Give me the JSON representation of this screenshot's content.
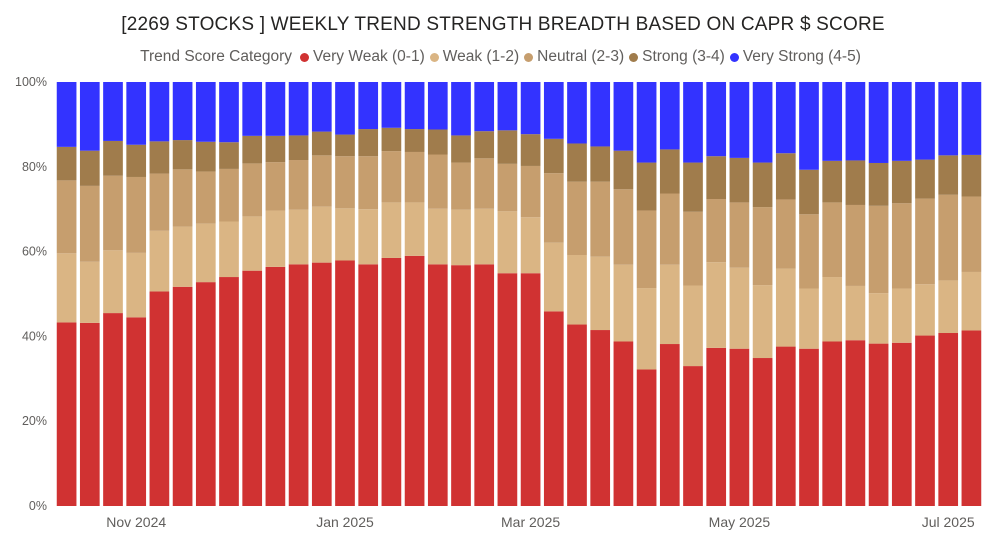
{
  "chart_data": {
    "type": "bar",
    "stacked": true,
    "normalized": true,
    "title": "[2269 STOCKS ] WEEKLY TREND STRENGTH BREADTH BASED ON CAPR $ SCORE",
    "legend_title": "Trend Score Category",
    "legend_position": "top-center",
    "ylim": [
      0,
      100
    ],
    "y_ticks": [
      "0%",
      "20%",
      "40%",
      "60%",
      "80%",
      "100%"
    ],
    "x_tick_labels": [
      {
        "label": "Nov 2024",
        "bar_index": 3
      },
      {
        "label": "Jan 2025",
        "bar_index": 12
      },
      {
        "label": "Mar 2025",
        "bar_index": 20
      },
      {
        "label": "May 2025",
        "bar_index": 29
      },
      {
        "label": "Jul 2025",
        "bar_index": 38
      }
    ],
    "series": [
      {
        "name": "Very Weak (0-1)",
        "color": "#D03232",
        "values": [
          43.3,
          43.2,
          45.5,
          44.5,
          50.6,
          51.7,
          52.8,
          54.0,
          55.5,
          56.4,
          57.0,
          57.4,
          57.9,
          57.0,
          58.5,
          59.0,
          57.0,
          56.8,
          57.0,
          54.9,
          54.9,
          45.9,
          42.8,
          41.5,
          38.8,
          32.2,
          38.2,
          33.0,
          37.3,
          37.1,
          34.9,
          37.6,
          37.1,
          38.8,
          39.1,
          38.3,
          38.5,
          40.2,
          40.8,
          41.4
        ]
      },
      {
        "name": "Weak (1-2)",
        "color": "#DAB584",
        "values": [
          16.3,
          14.4,
          14.8,
          15.2,
          14.3,
          14.2,
          13.8,
          13.1,
          12.8,
          13.3,
          12.9,
          13.2,
          12.3,
          13.0,
          13.1,
          12.6,
          13.1,
          13.1,
          13.1,
          14.6,
          13.2,
          16.2,
          16.4,
          17.3,
          18.1,
          19.2,
          18.7,
          19.0,
          20.2,
          19.1,
          17.2,
          18.4,
          14.2,
          15.2,
          12.8,
          11.9,
          12.8,
          12.1,
          12.4,
          13.8
        ]
      },
      {
        "name": "Neutral (2-3)",
        "color": "#C69E6E",
        "values": [
          17.2,
          17.9,
          17.6,
          17.9,
          13.5,
          13.5,
          12.3,
          12.4,
          12.5,
          11.4,
          11.7,
          12.1,
          12.3,
          12.5,
          12.1,
          11.9,
          12.8,
          11.1,
          11.9,
          11.2,
          12.1,
          16.4,
          17.3,
          17.7,
          17.8,
          18.3,
          16.8,
          17.4,
          14.9,
          15.4,
          18.4,
          16.3,
          17.5,
          17.6,
          19.1,
          20.6,
          20.1,
          20.2,
          20.2,
          17.8
        ]
      },
      {
        "name": "Strong (3-4)",
        "color": "#A07C4C",
        "values": [
          7.9,
          8.3,
          8.2,
          7.6,
          7.6,
          6.9,
          7.0,
          6.3,
          6.5,
          6.2,
          5.8,
          5.6,
          5.1,
          6.4,
          5.5,
          5.4,
          5.9,
          6.4,
          6.4,
          7.9,
          7.5,
          8.1,
          9.0,
          8.3,
          9.1,
          11.3,
          10.4,
          11.6,
          10.1,
          10.5,
          10.5,
          10.9,
          10.5,
          9.8,
          10.5,
          10.1,
          10.0,
          9.2,
          9.3,
          9.8
        ]
      },
      {
        "name": "Very Strong (4-5)",
        "color": "#3333FF",
        "values": [
          15.3,
          16.2,
          13.9,
          14.8,
          14.0,
          13.7,
          14.1,
          14.2,
          12.7,
          12.7,
          12.6,
          11.7,
          12.4,
          11.1,
          10.8,
          11.1,
          11.2,
          12.6,
          11.6,
          11.4,
          12.3,
          13.4,
          14.5,
          15.2,
          16.2,
          19.0,
          15.9,
          19.0,
          17.5,
          17.9,
          19.0,
          16.8,
          20.7,
          18.6,
          18.5,
          19.1,
          18.6,
          18.3,
          17.3,
          17.2
        ]
      }
    ]
  }
}
